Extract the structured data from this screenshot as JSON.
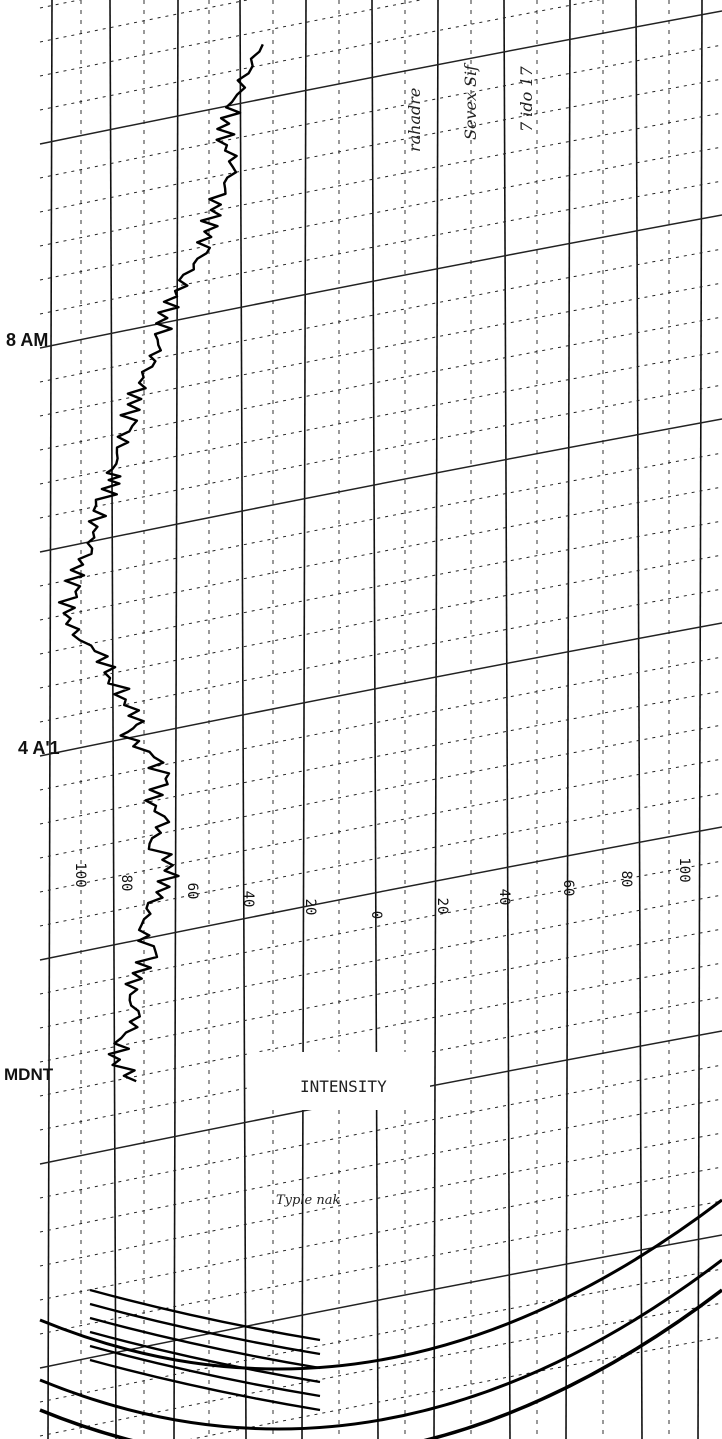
{
  "chart_data": {
    "type": "line",
    "title": "",
    "chart_label": "INTENSITY",
    "time_labels": [
      "8 AM",
      "4 A'1",
      "MDNT"
    ],
    "scale_labels": [
      "100",
      "80",
      "60",
      "40",
      "20",
      "0",
      "20",
      "40",
      "60",
      "80",
      "100"
    ],
    "handwritten_notes": [
      "7 ido 17",
      "Sevex Sif",
      "rahadre",
      "Typle nak"
    ],
    "series": [
      {
        "values": [
          [
            66,
            0.2
          ],
          [
            69,
            0.6
          ],
          [
            70,
            1.0
          ],
          [
            72,
            1.3
          ],
          [
            72,
            1.6
          ],
          [
            70,
            1.9
          ],
          [
            73,
            2.2
          ],
          [
            74,
            2.5
          ],
          [
            75,
            2.8
          ],
          [
            76,
            3.1
          ],
          [
            78,
            3.4
          ],
          [
            80,
            3.7
          ],
          [
            82,
            4.0
          ],
          [
            82,
            4.3
          ],
          [
            84,
            4.6
          ],
          [
            86,
            4.9
          ],
          [
            87,
            5.2
          ],
          [
            88,
            5.5
          ],
          [
            89,
            5.8
          ],
          [
            90,
            6.1
          ],
          [
            90,
            6.3
          ],
          [
            92,
            6.6
          ],
          [
            93,
            6.9
          ],
          [
            94,
            7.2
          ],
          [
            96,
            7.5
          ],
          [
            97,
            7.8
          ],
          [
            98,
            8.1
          ],
          [
            96,
            8.4
          ],
          [
            92,
            8.7
          ],
          [
            90,
            9.0
          ],
          [
            88,
            9.3
          ],
          [
            86,
            9.6
          ],
          [
            88,
            9.8
          ],
          [
            84,
            10.1
          ],
          [
            82,
            10.4
          ],
          [
            84,
            10.7
          ],
          [
            82,
            11.0
          ],
          [
            84,
            11.3
          ],
          [
            80,
            11.6
          ],
          [
            82,
            11.9
          ],
          [
            84,
            12.2
          ],
          [
            86,
            12.5
          ],
          [
            84,
            12.8
          ],
          [
            86,
            13.1
          ],
          [
            88,
            13.4
          ],
          [
            86,
            13.7
          ],
          [
            88,
            14.0
          ],
          [
            90,
            14.3
          ],
          [
            86,
            14.6
          ]
        ]
      }
    ],
    "line_color": "#000000",
    "grid": true
  }
}
